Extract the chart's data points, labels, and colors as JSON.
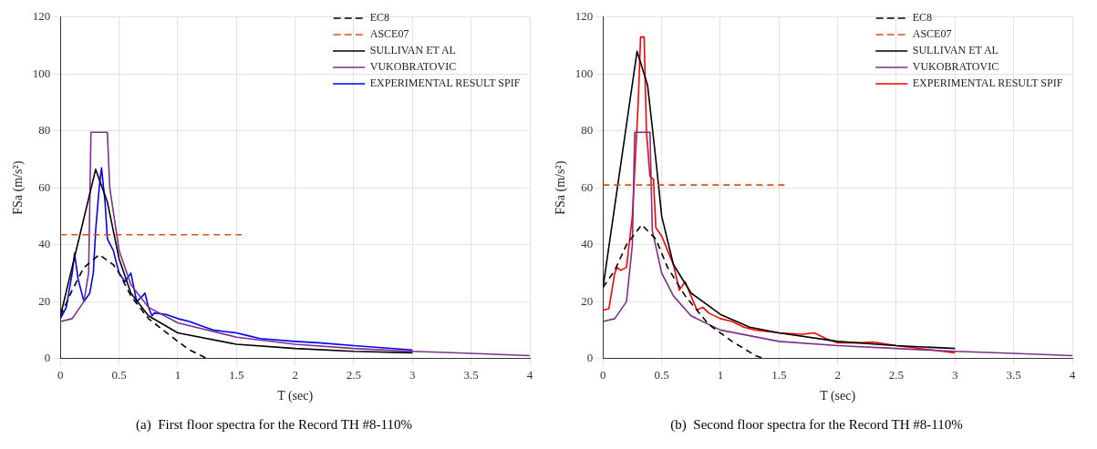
{
  "chart_data": [
    {
      "type": "line",
      "xlabel": "T (sec)",
      "ylabel": "FSa (m/s²)",
      "xlim": [
        0,
        4
      ],
      "ylim": [
        0,
        120
      ],
      "xticks": [
        0,
        0.5,
        1,
        1.5,
        2,
        2.5,
        3,
        3.5,
        4
      ],
      "yticks": [
        0,
        20,
        40,
        60,
        80,
        100,
        120
      ],
      "grid": true,
      "legend": "top right",
      "annotations": [
        "(a)  First floor spectra for the Record TH #8-110%"
      ],
      "series": [
        {
          "name": "EC8",
          "color": "#000000",
          "line_style": "dashed",
          "x": [
            0,
            0.1,
            0.2,
            0.33,
            0.45,
            0.5,
            0.6,
            0.75,
            1.0,
            1.1,
            1.25
          ],
          "values": [
            15,
            24,
            32,
            36.5,
            33,
            30,
            22,
            14,
            6,
            3,
            0
          ]
        },
        {
          "name": "ASCE07",
          "color": "#d95319",
          "line_style": "dashed",
          "x": [
            0,
            1.55
          ],
          "values": [
            43.5,
            43.5
          ]
        },
        {
          "name": "SULLIVAN ET AL",
          "color": "#000000",
          "line_style": "solid",
          "x": [
            0,
            0.3,
            0.4,
            0.5,
            0.6,
            0.75,
            1,
            1.5,
            2,
            2.5,
            3
          ],
          "values": [
            15,
            66.5,
            55,
            35,
            23,
            15,
            9,
            5,
            3.5,
            2.5,
            2
          ]
        },
        {
          "name": "VUKOBRATOVIC",
          "color": "#7e2f8e",
          "line_style": "solid",
          "x": [
            0,
            0.1,
            0.2,
            0.24,
            0.26,
            0.4,
            0.42,
            0.5,
            0.6,
            0.75,
            1,
            1.5,
            2,
            2.5,
            3,
            3.5,
            4
          ],
          "values": [
            13,
            14,
            20,
            30,
            79.5,
            79.5,
            60,
            38,
            26,
            18,
            12.5,
            7.5,
            5,
            3.5,
            2.5,
            1.8,
            1
          ]
        },
        {
          "name": "EXPERIMENTAL RESULT SPIF",
          "color": "#0000ff",
          "line_style": "solid",
          "x": [
            0,
            0.05,
            0.1,
            0.12,
            0.15,
            0.2,
            0.25,
            0.28,
            0.3,
            0.33,
            0.35,
            0.38,
            0.4,
            0.45,
            0.5,
            0.55,
            0.6,
            0.65,
            0.7,
            0.72,
            0.75,
            0.78,
            0.8,
            0.9,
            1,
            1.1,
            1.2,
            1.3,
            1.4,
            1.5,
            1.6,
            1.7,
            2,
            2.2,
            2.5,
            3
          ],
          "values": [
            14,
            18,
            30,
            37,
            28,
            20,
            23,
            30,
            45,
            60,
            67,
            55,
            42,
            38,
            30,
            27,
            30,
            20,
            22,
            23,
            18,
            15,
            16,
            15.5,
            14,
            13,
            11.5,
            10,
            9.5,
            9,
            8,
            7,
            6,
            5.5,
            4.5,
            3
          ]
        }
      ]
    },
    {
      "type": "line",
      "xlabel": "T (sec)",
      "ylabel": "FSa (m/s²)",
      "xlim": [
        0,
        4
      ],
      "ylim": [
        0,
        120
      ],
      "xticks": [
        0,
        0.5,
        1,
        1.5,
        2,
        2.5,
        3,
        3.5,
        4
      ],
      "yticks": [
        0,
        20,
        40,
        60,
        80,
        100,
        120
      ],
      "grid": true,
      "legend": "top right",
      "annotations": [
        "(b)  Second floor spectra for the Record TH #8-110%"
      ],
      "series": [
        {
          "name": "EC8",
          "color": "#000000",
          "line_style": "dashed",
          "x": [
            0,
            0.1,
            0.2,
            0.33,
            0.45,
            0.55,
            0.7,
            0.9,
            1.1,
            1.3,
            1.37
          ],
          "values": [
            25,
            31,
            40,
            47,
            42,
            32,
            22,
            12,
            6,
            1,
            0
          ]
        },
        {
          "name": "ASCE07",
          "color": "#d95319",
          "line_style": "dashed",
          "x": [
            0,
            1.55
          ],
          "values": [
            61,
            61
          ]
        },
        {
          "name": "SULLIVAN ET AL",
          "color": "#000000",
          "line_style": "solid",
          "x": [
            0,
            0.29,
            0.38,
            0.45,
            0.5,
            0.6,
            0.75,
            1,
            1.25,
            1.5,
            2,
            2.5,
            3
          ],
          "values": [
            25,
            108,
            96,
            70,
            50,
            33,
            23,
            15.5,
            11,
            9,
            6,
            4.5,
            3.5
          ]
        },
        {
          "name": "VUKOBRATOVIC",
          "color": "#7e2f8e",
          "line_style": "solid",
          "x": [
            0,
            0.1,
            0.2,
            0.25,
            0.27,
            0.4,
            0.42,
            0.5,
            0.6,
            0.75,
            1,
            1.5,
            2,
            2.5,
            3,
            3.5,
            4
          ],
          "values": [
            13,
            14,
            20,
            40,
            79.5,
            79.5,
            45,
            30,
            22,
            15,
            10,
            6,
            4.5,
            3.5,
            2.5,
            1.8,
            1
          ]
        },
        {
          "name": "EXPERIMENTAL RESULT SPIF",
          "color": "#ff0000",
          "line_style": "solid",
          "x": [
            0,
            0.05,
            0.1,
            0.12,
            0.15,
            0.2,
            0.25,
            0.3,
            0.32,
            0.35,
            0.37,
            0.4,
            0.43,
            0.45,
            0.5,
            0.55,
            0.6,
            0.65,
            0.7,
            0.75,
            0.8,
            0.85,
            0.9,
            1,
            1.1,
            1.2,
            1.3,
            1.5,
            1.7,
            1.8,
            1.9,
            2,
            2.2,
            2.3,
            2.5,
            3
          ],
          "values": [
            17,
            17.5,
            30,
            32,
            31,
            32,
            50,
            90,
            113,
            113,
            80,
            64,
            63,
            46,
            43,
            38,
            33,
            24,
            27,
            22,
            17,
            18,
            16,
            14,
            13,
            11,
            10,
            9,
            8.5,
            9,
            7,
            5.5,
            5.5,
            5.8,
            4.5,
            2
          ]
        }
      ]
    }
  ]
}
